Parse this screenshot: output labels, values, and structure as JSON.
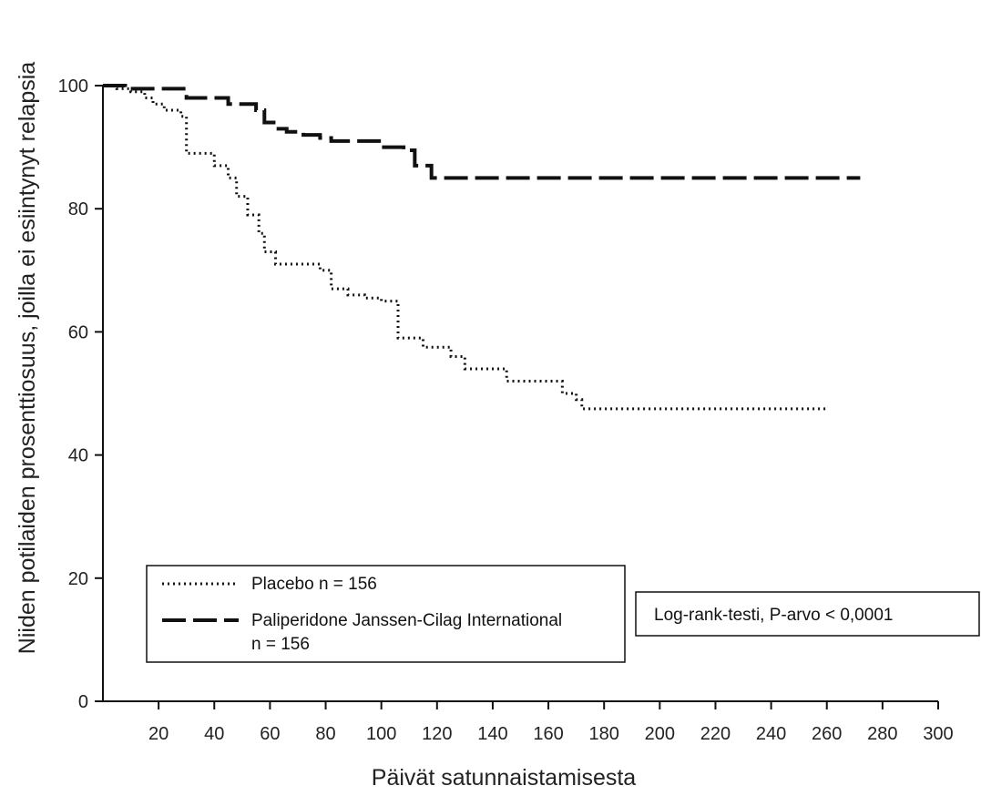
{
  "chart_data": {
    "type": "line",
    "subtype": "kaplan-meier step",
    "title": "",
    "xlabel": "Päivät satunnaistamisesta",
    "ylabel": "Niiden potilaiden prosenttiosuus, joilla ei esiintynyt relapsia",
    "xlim": [
      0,
      300
    ],
    "ylim": [
      0,
      100
    ],
    "xticks": [
      20,
      40,
      60,
      80,
      100,
      120,
      140,
      160,
      180,
      200,
      220,
      240,
      260,
      280,
      300
    ],
    "yticks": [
      0,
      20,
      40,
      60,
      80,
      100
    ],
    "grid": false,
    "legend_position": "bottom-left",
    "series": [
      {
        "name": "Placebo n = 156",
        "style": "dotted",
        "color": "#111111",
        "x": [
          0,
          5,
          10,
          15,
          18,
          22,
          28,
          30,
          40,
          45,
          48,
          52,
          56,
          58,
          62,
          70,
          78,
          82,
          88,
          94,
          100,
          106,
          110,
          115,
          125,
          130,
          140,
          145,
          160,
          165,
          170,
          172,
          260
        ],
        "y": [
          100,
          99.5,
          99,
          98,
          97,
          96,
          95,
          89,
          87,
          85,
          82,
          79,
          76,
          73,
          71,
          71,
          70,
          67,
          66,
          65.5,
          65,
          59,
          59,
          57.5,
          56,
          54,
          54,
          52,
          52,
          50,
          49,
          47.5,
          47.5
        ]
      },
      {
        "name": "Paliperidone Janssen-Cilag International n = 156",
        "style": "dashed",
        "color": "#111111",
        "x": [
          0,
          8,
          15,
          30,
          45,
          55,
          58,
          62,
          66,
          72,
          78,
          82,
          100,
          108,
          112,
          118,
          272
        ],
        "y": [
          100,
          99.5,
          99.5,
          98,
          97,
          96,
          94,
          93,
          92.5,
          92,
          91.5,
          91,
          90,
          89.5,
          87,
          85,
          85
        ]
      }
    ],
    "annotations": [
      "Log-rank-testi, P-arvo < 0,0001"
    ]
  },
  "legend": {
    "placebo_label": "Placebo n = 156",
    "paliperidone_label_line1": "Paliperidone Janssen-Cilag International",
    "paliperidone_label_line2": "n = 156"
  },
  "annotation_box": {
    "text": "Log-rank-testi, P-arvo < 0,0001"
  }
}
